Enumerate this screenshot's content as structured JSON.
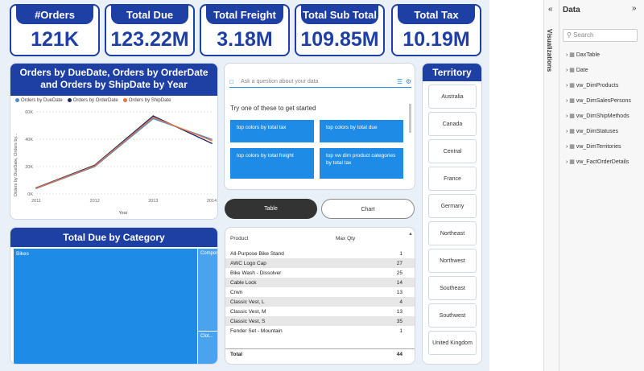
{
  "kpis": [
    {
      "title": "#Orders",
      "value": "121K"
    },
    {
      "title": "Total Due",
      "value": "123.22M"
    },
    {
      "title": "Total Freight",
      "value": "3.18M"
    },
    {
      "title": "Total Sub Total",
      "value": "109.85M"
    },
    {
      "title": "Total Tax",
      "value": "10.19M"
    }
  ],
  "line_chart": {
    "title": "Orders by DueDate, Orders by OrderDate and Orders by ShipDate by Year",
    "legend": [
      "Orders by DueDate",
      "Orders by OrderDate",
      "Orders by ShipDate"
    ],
    "y_label": "Orders by DueDate, Orders by...",
    "x_label": "Year",
    "y_ticks": [
      "60K",
      "40K",
      "20K",
      "0K"
    ],
    "x_ticks": [
      "2011",
      "2012",
      "2013",
      "2014"
    ]
  },
  "chart_data": {
    "type": "line",
    "x": [
      2011,
      2012,
      2013,
      2014
    ],
    "series": [
      {
        "name": "Orders by DueDate",
        "values": [
          4000,
          20000,
          55000,
          40000
        ],
        "color": "#4a8ad8"
      },
      {
        "name": "Orders by OrderDate",
        "values": [
          4500,
          21000,
          57000,
          37000
        ],
        "color": "#1a2a6c"
      },
      {
        "name": "Orders by ShipDate",
        "values": [
          4200,
          20500,
          56000,
          39000
        ],
        "color": "#e8743b"
      }
    ],
    "ylim": [
      0,
      60000
    ],
    "xlabel": "Year",
    "ylabel": "Orders by DueDate, Orders by..."
  },
  "qa": {
    "placeholder": "Ask a question about your data",
    "prompt": "Try one of these to get started",
    "suggestions": [
      "top colors by total tax",
      "top colors by total due",
      "top colors by total freight",
      "top vw dim product categories by total tax"
    ]
  },
  "toggle": {
    "table": "Table",
    "chart": "Chart"
  },
  "treemap": {
    "title": "Total Due by Category",
    "tiles": [
      "Bikes",
      "Compon...",
      "Clot..."
    ]
  },
  "product_table": {
    "headers": [
      "Product",
      "Max Qty"
    ],
    "rows": [
      [
        "All-Purpose Bike Stand",
        "1"
      ],
      [
        "AWC Logo Cap",
        "27"
      ],
      [
        "Bike Wash - Dissolver",
        "25"
      ],
      [
        "Cable Lock",
        "14"
      ],
      [
        "Crwn",
        "13"
      ],
      [
        "Classic Vest, L",
        "4"
      ],
      [
        "Classic Vest, M",
        "13"
      ],
      [
        "Classic Vest, S",
        "35"
      ],
      [
        "Fender Set - Mountain",
        "1"
      ]
    ],
    "total_label": "Total",
    "total_value": "44"
  },
  "territory": {
    "title": "Territory",
    "items": [
      "Australia",
      "Canada",
      "Central",
      "France",
      "Germany",
      "Northeast",
      "Northwest",
      "Southeast",
      "Southwest",
      "United Kingdom"
    ]
  },
  "sidebar": {
    "visualizations_label": "Visualizations",
    "data_title": "Data",
    "search_placeholder": "Search",
    "tables": [
      "DaxTable",
      "Date",
      "vw_DimProducts",
      "vw_DimSalesPersons",
      "vw_DimShipMethods",
      "vw_DimStatuses",
      "vw_DimTerritories",
      "vw_FactOrderDetails"
    ]
  }
}
